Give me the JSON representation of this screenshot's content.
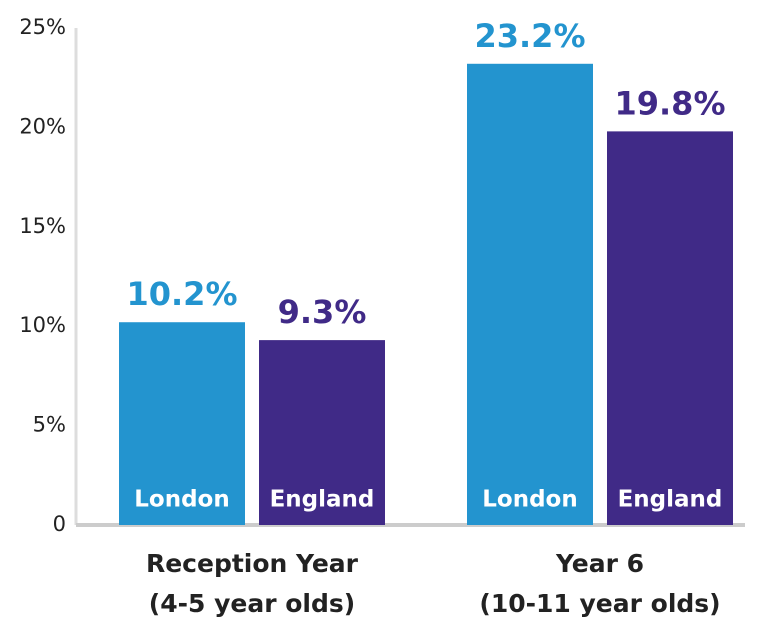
{
  "chart_data": {
    "type": "bar",
    "categories": [
      "Reception Year\n(4-5 year olds)",
      "Year 6\n(10-11 year olds)"
    ],
    "series": [
      {
        "name": "London",
        "color": "#2394cf",
        "values": [
          10.2,
          23.2
        ],
        "value_labels": [
          "10.2%",
          "23.2%"
        ]
      },
      {
        "name": "England",
        "color": "#402a87",
        "values": [
          9.3,
          19.8
        ],
        "value_labels": [
          "9.3%",
          "19.8%"
        ]
      }
    ],
    "ylim": [
      0,
      25
    ],
    "yticks": [
      0,
      {
        "value": 5,
        "label": "5%"
      },
      {
        "value": 10,
        "label": "10%"
      },
      {
        "value": 15,
        "label": "15%"
      },
      {
        "value": 20,
        "label": "20%"
      },
      {
        "value": 25,
        "label": "25%"
      }
    ],
    "grid": false
  }
}
